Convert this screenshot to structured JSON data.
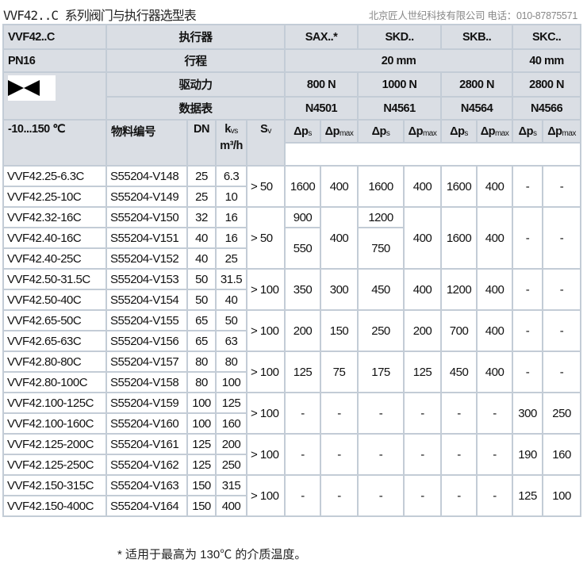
{
  "title": "VVF42..C 系列阀门与执行器选型表",
  "company": "北京匠人世纪科技有限公司 电话：010-87875571",
  "header": {
    "series": "VVF42..C",
    "actuator_label": "执行器",
    "actuators": [
      "SAX..*",
      "SKD..",
      "SKB..",
      "SKC.."
    ],
    "pressure": "PN16",
    "stroke_label": "行程",
    "strokes": [
      "20 mm",
      "40 mm"
    ],
    "valve_icon": "valve-symbol-icon",
    "force_label": "驱动力",
    "forces": [
      "800 N",
      "1000 N",
      "2800 N",
      "2800 N"
    ],
    "datasheet_label": "数据表",
    "datasheets": [
      "N4501",
      "N4561",
      "N4564",
      "N4566"
    ],
    "temp": "-10...150 ℃",
    "part_label": "物料编号",
    "dn_label": "DN",
    "kvs_label": "k",
    "kvs_sub": "vs",
    "kvs_unit": "m³/h",
    "sv_label": "S",
    "sv_sub": "v",
    "dps": "Δp",
    "dps_sub": "s",
    "dpmax": "Δp",
    "dpmax_sub": "max"
  },
  "groups": [
    {
      "sv": "> 50",
      "rows": [
        [
          "VVF42.25-6.3C",
          "S55204-V148",
          "25",
          "6.3"
        ],
        [
          "VVF42.25-10C",
          "S55204-V149",
          "25",
          "10"
        ]
      ],
      "cells": [
        "1600",
        "400",
        "1600",
        "400",
        "1600",
        "400",
        "-",
        "-"
      ]
    },
    {
      "sv": "> 50",
      "rows": [
        [
          "VVF42.32-16C",
          "S55204-V150",
          "32",
          "16"
        ],
        [
          "VVF42.40-16C",
          "S55204-V151",
          "40",
          "16"
        ],
        [
          "VVF42.40-25C",
          "S55204-V152",
          "40",
          "25"
        ]
      ],
      "cells": [
        {
          "top": "900",
          "bottom": "550"
        },
        "400",
        {
          "top": "1200",
          "bottom": "750"
        },
        "400",
        "1600",
        "400",
        "-",
        "-"
      ]
    },
    {
      "sv": "> 100",
      "rows": [
        [
          "VVF42.50-31.5C",
          "S55204-V153",
          "50",
          "31.5"
        ],
        [
          "VVF42.50-40C",
          "S55204-V154",
          "50",
          "40"
        ]
      ],
      "cells": [
        "350",
        "300",
        "450",
        "400",
        "1200",
        "400",
        "-",
        "-"
      ]
    },
    {
      "sv": "> 100",
      "rows": [
        [
          "VVF42.65-50C",
          "S55204-V155",
          "65",
          "50"
        ],
        [
          "VVF42.65-63C",
          "S55204-V156",
          "65",
          "63"
        ]
      ],
      "cells": [
        "200",
        "150",
        "250",
        "200",
        "700",
        "400",
        "-",
        "-"
      ]
    },
    {
      "sv": "> 100",
      "rows": [
        [
          "VVF42.80-80C",
          "S55204-V157",
          "80",
          "80"
        ],
        [
          "VVF42.80-100C",
          "S55204-V158",
          "80",
          "100"
        ]
      ],
      "cells": [
        "125",
        "75",
        "175",
        "125",
        "450",
        "400",
        "-",
        "-"
      ]
    },
    {
      "sv": "> 100",
      "rows": [
        [
          "VVF42.100-125C",
          "S55204-V159",
          "100",
          "125"
        ],
        [
          "VVF42.100-160C",
          "S55204-V160",
          "100",
          "160"
        ]
      ],
      "cells": [
        "-",
        "-",
        "-",
        "-",
        "-",
        "-",
        "300",
        "250"
      ]
    },
    {
      "sv": "> 100",
      "rows": [
        [
          "VVF42.125-200C",
          "S55204-V161",
          "125",
          "200"
        ],
        [
          "VVF42.125-250C",
          "S55204-V162",
          "125",
          "250"
        ]
      ],
      "cells": [
        "-",
        "-",
        "-",
        "-",
        "-",
        "-",
        "190",
        "160"
      ]
    },
    {
      "sv": "> 100",
      "rows": [
        [
          "VVF42.150-315C",
          "S55204-V163",
          "150",
          "315"
        ],
        [
          "VVF42.150-400C",
          "S55204-V164",
          "150",
          "400"
        ]
      ],
      "cells": [
        "-",
        "-",
        "-",
        "-",
        "-",
        "-",
        "125",
        "100"
      ]
    }
  ],
  "footnote": "* 适用于最高为 130℃ 的介质温度。"
}
